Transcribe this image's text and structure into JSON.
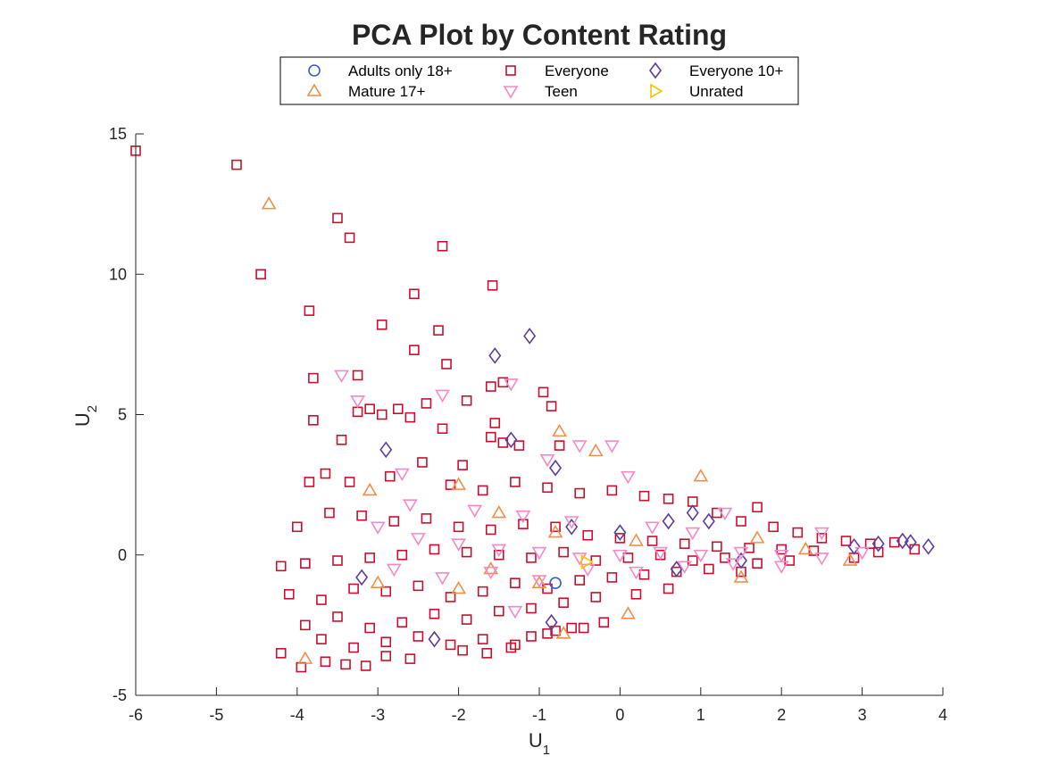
{
  "chart_data": {
    "type": "scatter",
    "title": "PCA Plot by Content Rating",
    "xlabel": {
      "base": "U",
      "sub": "1"
    },
    "ylabel": {
      "base": "U",
      "sub": "2"
    },
    "xlim": [
      -6,
      4
    ],
    "ylim": [
      -5,
      15
    ],
    "xticks": [
      "-6",
      "-5",
      "-4",
      "-3",
      "-2",
      "-1",
      "0",
      "1",
      "2",
      "3",
      "4"
    ],
    "yticks": [
      "-5",
      "0",
      "5",
      "10",
      "15"
    ],
    "grid": false,
    "legend": {
      "placement": "top",
      "columns": 3
    },
    "series": [
      {
        "name": "Adults only 18+",
        "marker": "circle",
        "color": "#3b5bdb",
        "points": [
          [
            -0.8,
            -1.0
          ]
        ]
      },
      {
        "name": "Everyone",
        "marker": "square",
        "color": "#c8102e",
        "points": [
          [
            -6.0,
            14.4
          ],
          [
            -4.75,
            13.9
          ],
          [
            -3.5,
            12.0
          ],
          [
            -3.35,
            11.3
          ],
          [
            -2.2,
            11.0
          ],
          [
            -4.45,
            10.0
          ],
          [
            -2.55,
            9.3
          ],
          [
            -1.58,
            9.6
          ],
          [
            -3.85,
            8.7
          ],
          [
            -2.95,
            8.2
          ],
          [
            -2.25,
            8.0
          ],
          [
            -2.55,
            7.3
          ],
          [
            -2.15,
            6.8
          ],
          [
            -3.8,
            6.3
          ],
          [
            -3.25,
            6.4
          ],
          [
            -1.6,
            6.0
          ],
          [
            -1.45,
            6.15
          ],
          [
            -0.95,
            5.8
          ],
          [
            -0.85,
            5.3
          ],
          [
            -1.9,
            5.5
          ],
          [
            -2.4,
            5.4
          ],
          [
            -3.25,
            5.1
          ],
          [
            -3.1,
            5.2
          ],
          [
            -2.75,
            5.2
          ],
          [
            -2.95,
            5.0
          ],
          [
            -2.6,
            4.9
          ],
          [
            -3.8,
            4.8
          ],
          [
            -1.55,
            4.7
          ],
          [
            -2.2,
            4.5
          ],
          [
            -3.45,
            4.1
          ],
          [
            -1.6,
            4.2
          ],
          [
            -1.45,
            4.0
          ],
          [
            -1.25,
            3.9
          ],
          [
            -0.75,
            3.9
          ],
          [
            -2.45,
            3.3
          ],
          [
            -1.95,
            3.2
          ],
          [
            -2.85,
            2.8
          ],
          [
            -3.85,
            2.6
          ],
          [
            -3.65,
            2.9
          ],
          [
            -3.35,
            2.6
          ],
          [
            -2.1,
            2.5
          ],
          [
            -1.7,
            2.3
          ],
          [
            -1.3,
            2.6
          ],
          [
            -0.9,
            2.4
          ],
          [
            -0.5,
            2.2
          ],
          [
            -0.1,
            2.3
          ],
          [
            0.3,
            2.1
          ],
          [
            0.6,
            2.0
          ],
          [
            0.9,
            1.9
          ],
          [
            1.2,
            1.5
          ],
          [
            1.5,
            1.2
          ],
          [
            1.7,
            1.7
          ],
          [
            1.9,
            1.0
          ],
          [
            2.2,
            0.8
          ],
          [
            2.5,
            0.6
          ],
          [
            2.8,
            0.5
          ],
          [
            3.1,
            0.4
          ],
          [
            3.4,
            0.45
          ],
          [
            3.65,
            0.2
          ],
          [
            3.2,
            0.1
          ],
          [
            2.9,
            -0.1
          ],
          [
            -4.0,
            1.0
          ],
          [
            -3.6,
            1.5
          ],
          [
            -3.2,
            1.4
          ],
          [
            -2.8,
            1.2
          ],
          [
            -2.4,
            1.3
          ],
          [
            -2.0,
            1.0
          ],
          [
            -1.6,
            0.9
          ],
          [
            -1.2,
            1.1
          ],
          [
            -0.8,
            1.0
          ],
          [
            -0.4,
            0.7
          ],
          [
            0.0,
            0.6
          ],
          [
            0.4,
            0.5
          ],
          [
            0.8,
            0.4
          ],
          [
            1.2,
            0.3
          ],
          [
            1.6,
            0.25
          ],
          [
            2.0,
            0.2
          ],
          [
            2.4,
            0.15
          ],
          [
            -4.2,
            -0.4
          ],
          [
            -3.9,
            -0.3
          ],
          [
            -3.5,
            -0.2
          ],
          [
            -3.1,
            -0.1
          ],
          [
            -2.7,
            0.0
          ],
          [
            -2.3,
            0.2
          ],
          [
            -1.9,
            0.1
          ],
          [
            -1.5,
            0.0
          ],
          [
            -1.1,
            -0.1
          ],
          [
            -0.7,
            0.1
          ],
          [
            -0.3,
            -0.2
          ],
          [
            0.1,
            -0.1
          ],
          [
            0.5,
            0.0
          ],
          [
            0.9,
            -0.2
          ],
          [
            1.3,
            -0.1
          ],
          [
            1.7,
            -0.3
          ],
          [
            2.1,
            -0.2
          ],
          [
            -4.1,
            -1.4
          ],
          [
            -3.7,
            -1.6
          ],
          [
            -3.3,
            -1.2
          ],
          [
            -2.9,
            -1.3
          ],
          [
            -2.5,
            -1.1
          ],
          [
            -2.1,
            -1.5
          ],
          [
            -1.7,
            -1.3
          ],
          [
            -1.3,
            -1.0
          ],
          [
            -0.9,
            -1.2
          ],
          [
            -0.5,
            -0.9
          ],
          [
            -0.1,
            -0.8
          ],
          [
            0.3,
            -0.7
          ],
          [
            0.7,
            -0.6
          ],
          [
            1.1,
            -0.5
          ],
          [
            1.5,
            -0.6
          ],
          [
            -3.9,
            -2.5
          ],
          [
            -3.5,
            -2.2
          ],
          [
            -3.1,
            -2.6
          ],
          [
            -2.7,
            -2.4
          ],
          [
            -2.3,
            -2.1
          ],
          [
            -1.9,
            -2.3
          ],
          [
            -1.5,
            -2.0
          ],
          [
            -1.1,
            -1.9
          ],
          [
            -0.7,
            -1.7
          ],
          [
            -0.3,
            -1.5
          ],
          [
            0.2,
            -1.4
          ],
          [
            0.6,
            -1.2
          ],
          [
            -3.7,
            -3.0
          ],
          [
            -3.3,
            -3.3
          ],
          [
            -2.9,
            -3.1
          ],
          [
            -2.5,
            -2.9
          ],
          [
            -2.1,
            -3.2
          ],
          [
            -1.7,
            -3.0
          ],
          [
            -1.3,
            -3.2
          ],
          [
            -0.9,
            -2.8
          ],
          [
            -0.6,
            -2.6
          ],
          [
            -0.2,
            -2.4
          ],
          [
            -4.2,
            -3.5
          ],
          [
            -3.95,
            -4.0
          ],
          [
            -3.65,
            -3.8
          ],
          [
            -3.4,
            -3.9
          ],
          [
            -3.15,
            -3.95
          ],
          [
            -2.9,
            -3.6
          ],
          [
            -2.6,
            -3.7
          ],
          [
            -1.95,
            -3.4
          ],
          [
            -1.65,
            -3.5
          ],
          [
            -1.35,
            -3.3
          ],
          [
            -1.1,
            -2.9
          ],
          [
            -0.8,
            -2.7
          ],
          [
            -0.45,
            -2.6
          ]
        ]
      },
      {
        "name": "Everyone 10+",
        "marker": "diamond",
        "color": "#5e3c99",
        "points": [
          [
            -1.12,
            7.8
          ],
          [
            -1.55,
            7.1
          ],
          [
            -1.35,
            4.1
          ],
          [
            -2.9,
            3.75
          ],
          [
            -0.8,
            3.1
          ],
          [
            -0.6,
            1.0
          ],
          [
            0.0,
            0.8
          ],
          [
            0.6,
            1.2
          ],
          [
            0.9,
            1.5
          ],
          [
            1.1,
            1.2
          ],
          [
            2.9,
            0.3
          ],
          [
            3.2,
            0.4
          ],
          [
            3.5,
            0.5
          ],
          [
            3.6,
            0.45
          ],
          [
            3.82,
            0.3
          ],
          [
            -3.2,
            -0.8
          ],
          [
            -2.3,
            -3.0
          ],
          [
            -0.85,
            -2.4
          ],
          [
            0.7,
            -0.5
          ],
          [
            1.5,
            -0.2
          ]
        ]
      },
      {
        "name": "Mature 17+",
        "marker": "triangle-up",
        "color": "#f28e4b",
        "points": [
          [
            -4.35,
            12.5
          ],
          [
            -0.75,
            4.4
          ],
          [
            -0.3,
            3.7
          ],
          [
            1.0,
            2.8
          ],
          [
            -3.1,
            2.3
          ],
          [
            -2.0,
            2.5
          ],
          [
            -1.5,
            1.5
          ],
          [
            -0.8,
            0.8
          ],
          [
            0.2,
            0.5
          ],
          [
            1.7,
            0.6
          ],
          [
            2.3,
            0.2
          ],
          [
            2.85,
            -0.2
          ],
          [
            -3.0,
            -1.0
          ],
          [
            -2.0,
            -1.2
          ],
          [
            -1.0,
            -1.0
          ],
          [
            0.1,
            -2.1
          ],
          [
            -0.7,
            -2.8
          ],
          [
            -3.9,
            -3.7
          ],
          [
            1.5,
            -0.8
          ],
          [
            -1.6,
            -0.5
          ]
        ]
      },
      {
        "name": "Teen",
        "marker": "triangle-down",
        "color": "#f588c6",
        "points": [
          [
            -3.45,
            6.4
          ],
          [
            -1.35,
            6.1
          ],
          [
            -3.25,
            5.5
          ],
          [
            -2.2,
            5.7
          ],
          [
            -0.5,
            3.9
          ],
          [
            -0.1,
            3.9
          ],
          [
            -2.7,
            2.9
          ],
          [
            -0.9,
            3.4
          ],
          [
            0.1,
            2.8
          ],
          [
            1.3,
            1.5
          ],
          [
            2.5,
            0.8
          ],
          [
            -3.0,
            1.0
          ],
          [
            -2.5,
            0.6
          ],
          [
            -2.0,
            0.4
          ],
          [
            -1.5,
            0.2
          ],
          [
            -1.0,
            0.1
          ],
          [
            -0.5,
            -0.1
          ],
          [
            0.0,
            0.0
          ],
          [
            0.5,
            0.1
          ],
          [
            1.0,
            0.0
          ],
          [
            1.5,
            0.1
          ],
          [
            2.0,
            0.0
          ],
          [
            2.5,
            -0.1
          ],
          [
            3.0,
            0.1
          ],
          [
            -2.8,
            -0.5
          ],
          [
            -2.2,
            -0.8
          ],
          [
            -1.6,
            -0.6
          ],
          [
            -1.0,
            -0.9
          ],
          [
            -0.4,
            -0.5
          ],
          [
            0.2,
            -0.6
          ],
          [
            0.8,
            -0.4
          ],
          [
            1.4,
            -0.3
          ],
          [
            2.0,
            -0.4
          ],
          [
            -2.6,
            1.8
          ],
          [
            -1.8,
            1.6
          ],
          [
            -1.2,
            1.4
          ],
          [
            -0.6,
            1.2
          ],
          [
            0.4,
            1.0
          ],
          [
            0.9,
            0.8
          ],
          [
            -1.3,
            -2.0
          ]
        ]
      },
      {
        "name": "Unrated",
        "marker": "triangle-right",
        "color": "#f5c400",
        "points": [
          [
            -0.42,
            -0.25
          ]
        ]
      }
    ]
  }
}
